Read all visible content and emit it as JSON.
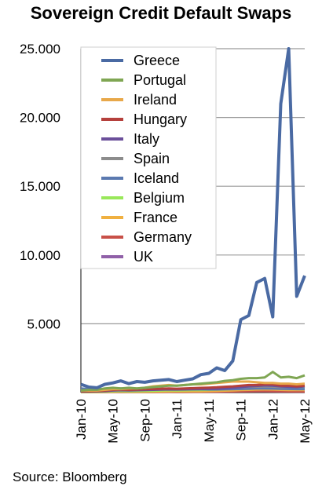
{
  "chart_data": {
    "type": "line",
    "title": "Sovereign Credit Default Swaps",
    "source": "Source: Bloomberg",
    "xlabel": "",
    "ylabel": "",
    "ylim": [
      0,
      25000
    ],
    "y_ticks": [
      25000,
      20000,
      15000,
      10000,
      5000
    ],
    "y_tick_labels": [
      "25.000",
      "20.000",
      "15.000",
      "10.000",
      "5.000"
    ],
    "x": [
      "Jan-10",
      "Feb-10",
      "Mar-10",
      "Apr-10",
      "May-10",
      "Jun-10",
      "Jul-10",
      "Aug-10",
      "Sep-10",
      "Oct-10",
      "Nov-10",
      "Dec-10",
      "Jan-11",
      "Feb-11",
      "Mar-11",
      "Apr-11",
      "May-11",
      "Jun-11",
      "Jul-11",
      "Aug-11",
      "Sep-11",
      "Oct-11",
      "Nov-11",
      "Dec-11",
      "Jan-12",
      "Feb-12",
      "Mar-12",
      "Apr-12",
      "May-12"
    ],
    "x_tick_labels": [
      "Jan-10",
      "May-10",
      "Sep-10",
      "Jan-11",
      "May-11",
      "Sep-11",
      "Jan-12",
      "May-12"
    ],
    "legend_position": "top-left",
    "grid": "horizontal",
    "series": [
      {
        "name": "Greece",
        "color": "#4a6aa3",
        "values": [
          600,
          400,
          350,
          600,
          700,
          850,
          650,
          800,
          750,
          850,
          900,
          950,
          800,
          900,
          1000,
          1300,
          1400,
          1800,
          1600,
          2300,
          5300,
          5600,
          8000,
          8300,
          5500,
          21000,
          25000,
          7000,
          8500
        ]
      },
      {
        "name": "Portugal",
        "color": "#7fa653",
        "values": [
          150,
          200,
          200,
          300,
          350,
          300,
          350,
          300,
          350,
          400,
          450,
          500,
          500,
          550,
          600,
          650,
          700,
          750,
          850,
          900,
          1000,
          1050,
          1050,
          1100,
          1500,
          1100,
          1150,
          1050,
          1250
        ]
      },
      {
        "name": "Ireland",
        "color": "#e8a84a",
        "values": [
          150,
          150,
          150,
          200,
          250,
          250,
          300,
          300,
          350,
          450,
          500,
          550,
          500,
          550,
          600,
          600,
          650,
          700,
          750,
          800,
          800,
          800,
          750,
          700,
          700,
          650,
          650,
          600,
          650
        ]
      },
      {
        "name": "Hungary",
        "color": "#b5403c",
        "values": [
          100,
          100,
          120,
          150,
          200,
          220,
          200,
          220,
          240,
          260,
          280,
          300,
          280,
          300,
          320,
          340,
          360,
          380,
          420,
          450,
          500,
          550,
          550,
          600,
          600,
          500,
          500,
          450,
          500
        ]
      },
      {
        "name": "Italy",
        "color": "#6b4f9a",
        "values": [
          80,
          80,
          90,
          110,
          150,
          170,
          160,
          170,
          180,
          200,
          210,
          230,
          220,
          230,
          240,
          250,
          260,
          270,
          300,
          350,
          400,
          450,
          480,
          520,
          500,
          450,
          420,
          400,
          450
        ]
      },
      {
        "name": "Spain",
        "color": "#8c8c8c",
        "values": [
          80,
          80,
          90,
          120,
          170,
          190,
          180,
          200,
          210,
          230,
          250,
          270,
          260,
          270,
          280,
          290,
          300,
          310,
          340,
          380,
          400,
          420,
          430,
          450,
          430,
          400,
          420,
          430,
          450
        ]
      },
      {
        "name": "Iceland",
        "color": "#5b79b0",
        "values": [
          300,
          250,
          250,
          260,
          280,
          300,
          280,
          260,
          250,
          250,
          260,
          260,
          250,
          250,
          240,
          240,
          230,
          230,
          240,
          250,
          260,
          280,
          300,
          300,
          290,
          270,
          260,
          250,
          250
        ]
      },
      {
        "name": "Belgium",
        "color": "#99e85a",
        "values": [
          50,
          50,
          60,
          70,
          100,
          110,
          100,
          110,
          120,
          130,
          150,
          170,
          160,
          170,
          180,
          190,
          200,
          210,
          230,
          260,
          280,
          300,
          320,
          340,
          320,
          300,
          280,
          270,
          280
        ]
      },
      {
        "name": "France",
        "color": "#f0b040",
        "values": [
          40,
          40,
          40,
          50,
          60,
          70,
          60,
          60,
          60,
          70,
          80,
          90,
          90,
          90,
          100,
          100,
          110,
          120,
          140,
          160,
          180,
          200,
          220,
          230,
          220,
          200,
          190,
          180,
          190
        ]
      },
      {
        "name": "Germany",
        "color": "#c85048",
        "values": [
          30,
          30,
          30,
          35,
          40,
          45,
          40,
          40,
          40,
          45,
          50,
          55,
          50,
          50,
          55,
          55,
          60,
          60,
          70,
          80,
          90,
          100,
          110,
          110,
          100,
          90,
          85,
          80,
          80
        ]
      },
      {
        "name": "UK",
        "color": "#9060a8",
        "values": [
          60,
          60,
          60,
          70,
          80,
          80,
          70,
          70,
          70,
          70,
          70,
          70,
          70,
          70,
          70,
          70,
          70,
          70,
          80,
          90,
          90,
          100,
          100,
          100,
          90,
          80,
          80,
          80,
          80
        ]
      }
    ]
  }
}
